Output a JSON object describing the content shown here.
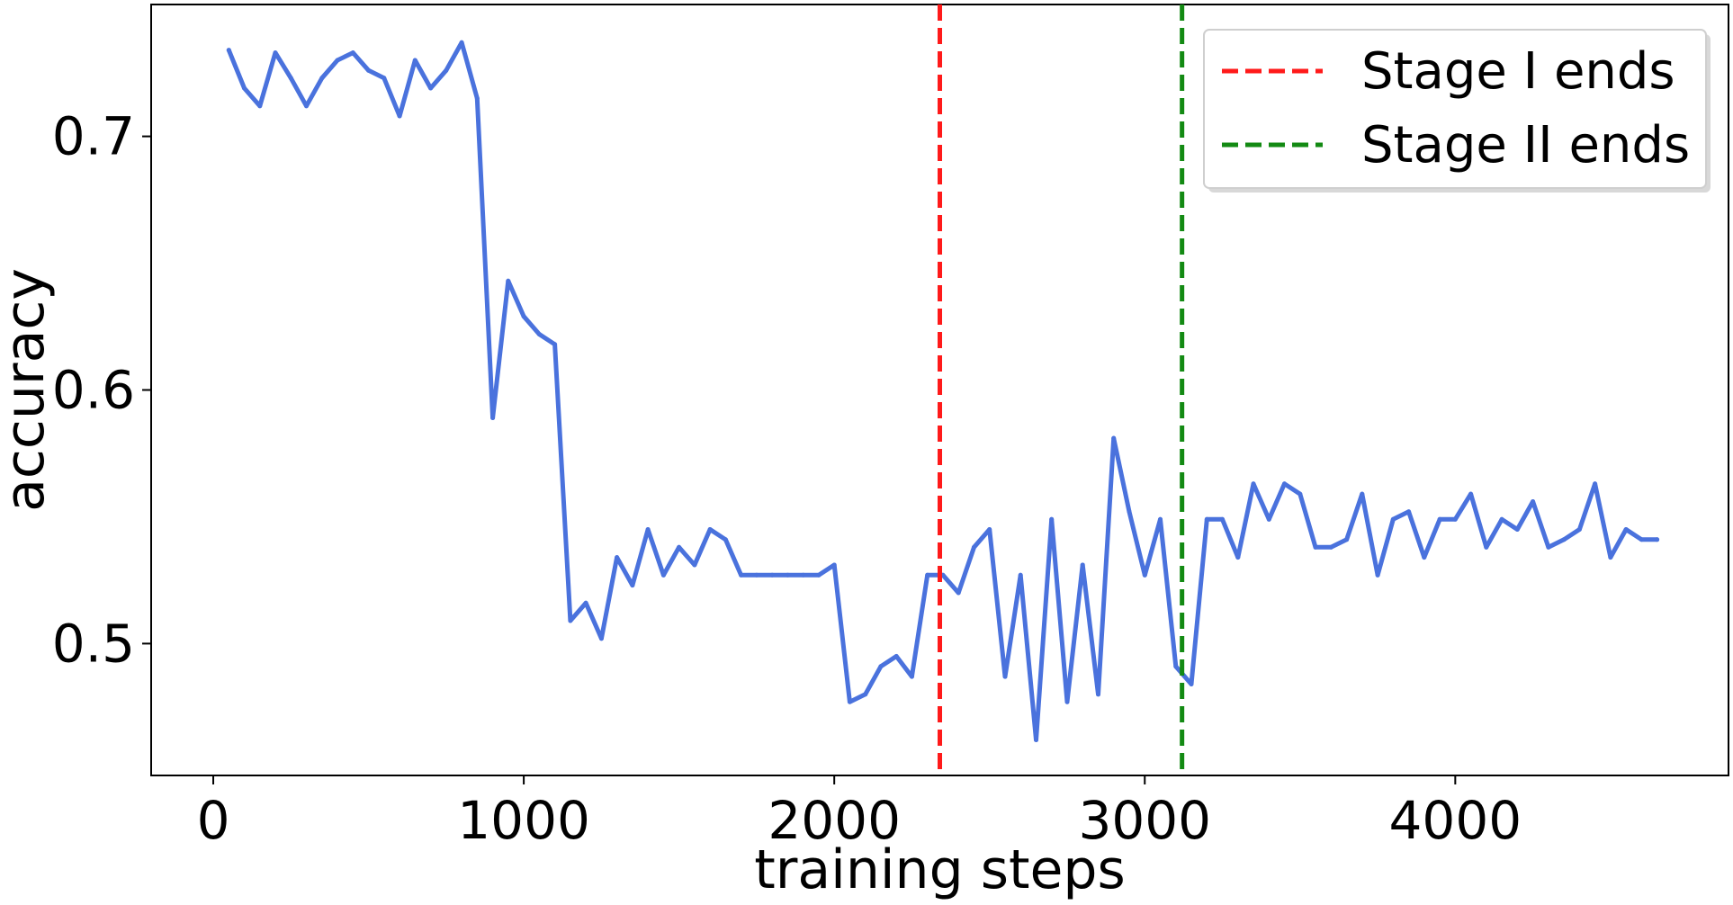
{
  "chart_data": {
    "type": "line",
    "title": "",
    "xlabel": "training steps",
    "ylabel": "accuracy",
    "xlim": [
      -200,
      4880
    ],
    "ylim": [
      0.448,
      0.752
    ],
    "x_ticks": [
      0,
      1000,
      2000,
      3000,
      4000
    ],
    "x_tick_labels": [
      "0",
      "1000",
      "2000",
      "3000",
      "4000"
    ],
    "y_ticks": [
      0.5,
      0.6,
      0.7
    ],
    "y_tick_labels": [
      "0.5",
      "0.6",
      "0.7"
    ],
    "grid": false,
    "legend_position": "top-right",
    "series": [
      {
        "color": "#4a72dd",
        "x": [
          50,
          100,
          150,
          200,
          250,
          300,
          350,
          400,
          450,
          500,
          550,
          600,
          650,
          700,
          750,
          800,
          850,
          900,
          950,
          1000,
          1050,
          1100,
          1150,
          1200,
          1250,
          1300,
          1350,
          1400,
          1450,
          1500,
          1550,
          1600,
          1650,
          1700,
          1750,
          1800,
          1850,
          1900,
          1950,
          2000,
          2050,
          2100,
          2150,
          2200,
          2250,
          2300,
          2350,
          2400,
          2450,
          2500,
          2550,
          2600,
          2650,
          2700,
          2750,
          2800,
          2850,
          2900,
          2950,
          3000,
          3050,
          3100,
          3150,
          3200,
          3250,
          3300,
          3350,
          3400,
          3450,
          3500,
          3550,
          3600,
          3650,
          3700,
          3750,
          3800,
          3850,
          3900,
          3950,
          4000,
          4050,
          4100,
          4150,
          4200,
          4250,
          4300,
          4350,
          4400,
          4450,
          4500,
          4550,
          4600,
          4650
        ],
        "values": [
          0.734,
          0.719,
          0.712,
          0.733,
          0.723,
          0.712,
          0.723,
          0.73,
          0.733,
          0.726,
          0.723,
          0.708,
          0.73,
          0.719,
          0.726,
          0.737,
          0.715,
          0.589,
          0.643,
          0.629,
          0.622,
          0.618,
          0.509,
          0.516,
          0.502,
          0.534,
          0.523,
          0.545,
          0.527,
          0.538,
          0.531,
          0.545,
          0.541,
          0.527,
          0.527,
          0.527,
          0.527,
          0.527,
          0.527,
          0.531,
          0.477,
          0.48,
          0.491,
          0.495,
          0.487,
          0.527,
          0.527,
          0.52,
          0.538,
          0.545,
          0.487,
          0.527,
          0.462,
          0.549,
          0.477,
          0.531,
          0.48,
          0.581,
          0.552,
          0.527,
          0.549,
          0.491,
          0.484,
          0.549,
          0.549,
          0.534,
          0.563,
          0.549,
          0.563,
          0.559,
          0.538,
          0.538,
          0.541,
          0.559,
          0.527,
          0.549,
          0.552,
          0.534,
          0.549,
          0.549,
          0.559,
          0.538,
          0.549,
          0.545,
          0.556,
          0.538,
          0.541,
          0.545,
          0.563,
          0.534,
          0.545,
          0.541,
          0.541
        ]
      }
    ],
    "vlines": [
      {
        "name": "Stage I ends",
        "x": 2340,
        "color": "#ff1a1a",
        "style": "dashed"
      },
      {
        "name": "Stage II ends",
        "x": 3120,
        "color": "#138a13",
        "style": "dashed"
      }
    ],
    "legend_entries": [
      "Stage I ends",
      "Stage II ends"
    ]
  }
}
